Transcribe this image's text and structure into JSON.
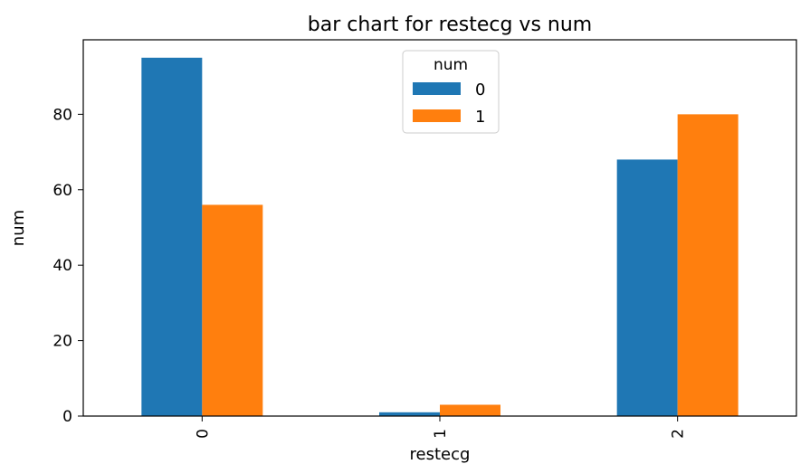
{
  "chart_data": {
    "type": "bar",
    "title": "bar chart for restecg vs num",
    "xlabel": "restecg",
    "ylabel": "num",
    "categories": [
      "0",
      "1",
      "2"
    ],
    "series": [
      {
        "name": "0",
        "values": [
          95,
          1,
          68
        ],
        "color": "#1f77b4"
      },
      {
        "name": "1",
        "values": [
          56,
          3,
          80
        ],
        "color": "#ff7f0e"
      }
    ],
    "ylim": [
      0,
      99.75
    ],
    "yticks": [
      0,
      20,
      40,
      60,
      80
    ],
    "legend": {
      "title": "num",
      "position": "top-center"
    },
    "grid": false
  }
}
